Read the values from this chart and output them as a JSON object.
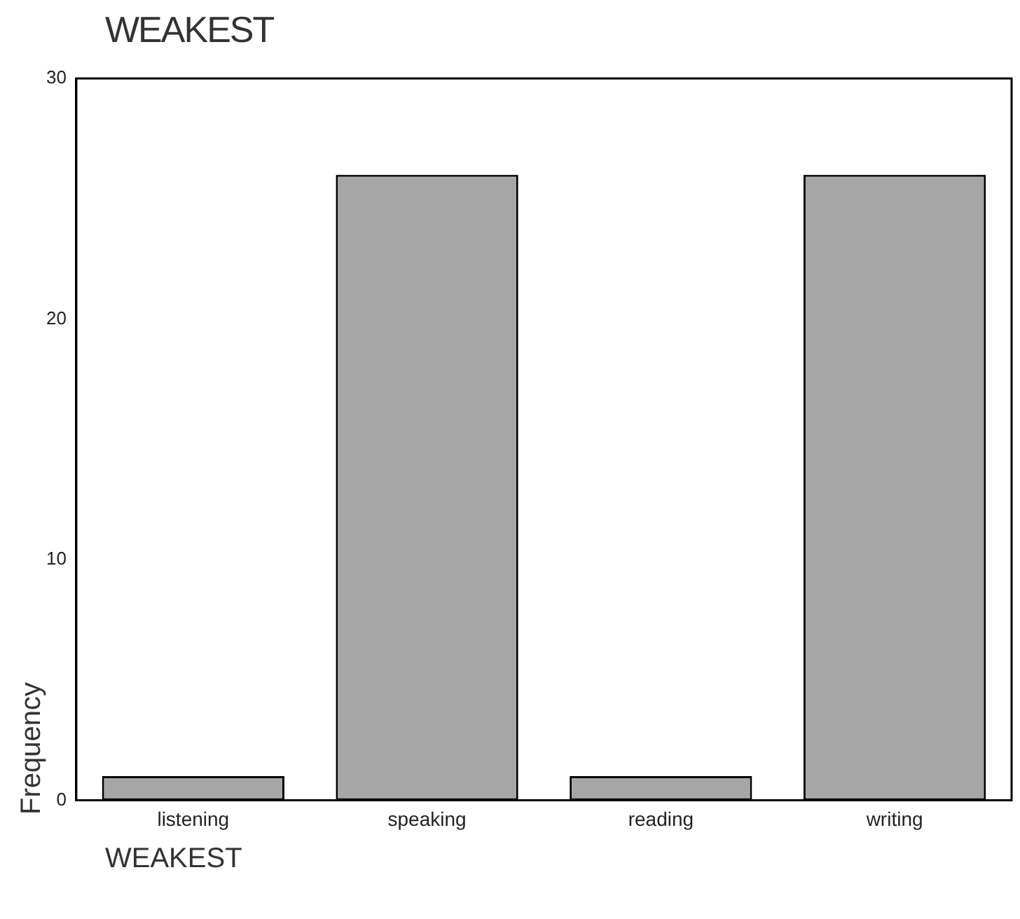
{
  "chart_data": {
    "type": "bar",
    "title": "WEAKEST",
    "xlabel": "WEAKEST",
    "ylabel": "Frequency",
    "categories": [
      "listening",
      "speaking",
      "reading",
      "writing"
    ],
    "values": [
      1,
      26,
      1,
      26
    ],
    "color": "#a6a6a6",
    "ylim": [
      0,
      30
    ],
    "yticks": [
      0,
      10,
      20,
      30
    ],
    "grid": false,
    "legend": false
  }
}
